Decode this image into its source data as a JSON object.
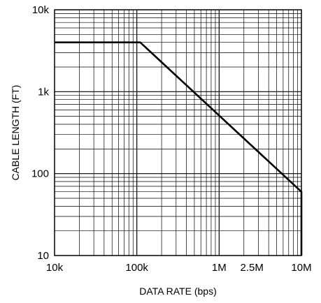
{
  "chart_data": {
    "type": "line",
    "title": "",
    "xlabel": "DATA RATE (bps)",
    "ylabel": "CABLE LENGTH (FT)",
    "x_scale": "log",
    "y_scale": "log",
    "xlim": [
      10000,
      10000000
    ],
    "ylim": [
      10,
      10000
    ],
    "grid": true,
    "x_ticks": [
      {
        "value": 10000,
        "label": "10k"
      },
      {
        "value": 100000,
        "label": "100k"
      },
      {
        "value": 1000000,
        "label": "1M"
      },
      {
        "value": 2500000,
        "label": "2.5M"
      },
      {
        "value": 10000000,
        "label": "10M"
      }
    ],
    "y_ticks": [
      {
        "value": 10,
        "label": "10"
      },
      {
        "value": 100,
        "label": "100"
      },
      {
        "value": 1000,
        "label": "1k"
      },
      {
        "value": 10000,
        "label": "10k"
      }
    ],
    "series": [
      {
        "x": [
          10000,
          110000,
          10000000,
          10000000
        ],
        "y": [
          4000,
          4000,
          60,
          10
        ]
      }
    ]
  },
  "colors": {
    "line": "#000000",
    "grid": "#000000",
    "background": "#ffffff"
  }
}
